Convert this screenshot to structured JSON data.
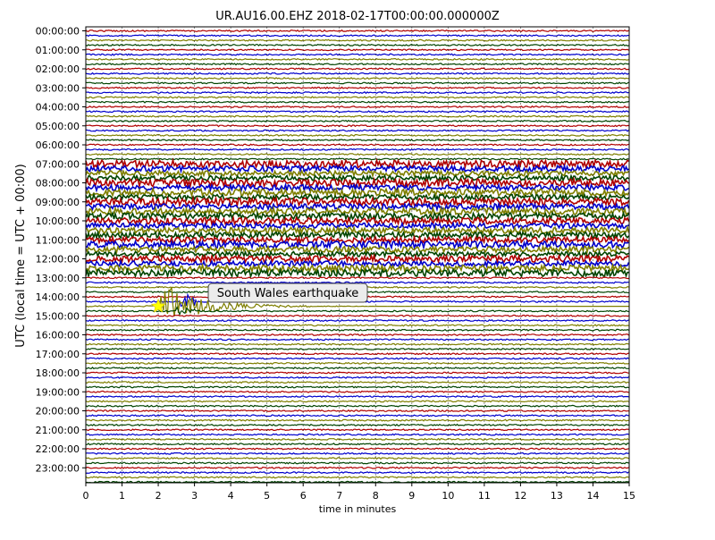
{
  "chart_data": {
    "type": "line",
    "title": "UR.AU16.00.EHZ  2018-02-17T00:00:00.000000Z",
    "xlabel": "time in minutes",
    "ylabel": "UTC (local time = UTC + 00:00)",
    "xlim": [
      0,
      15
    ],
    "x_ticks": [
      "0",
      "1",
      "2",
      "3",
      "4",
      "5",
      "6",
      "7",
      "8",
      "9",
      "10",
      "11",
      "12",
      "13",
      "14",
      "15"
    ],
    "y_tick_labels": [
      "00:00:00",
      "01:00:00",
      "02:00:00",
      "03:00:00",
      "04:00:00",
      "05:00:00",
      "06:00:00",
      "07:00:00",
      "08:00:00",
      "09:00:00",
      "10:00:00",
      "11:00:00",
      "12:00:00",
      "13:00:00",
      "14:00:00",
      "15:00:00",
      "16:00:00",
      "17:00:00",
      "18:00:00",
      "19:00:00",
      "20:00:00",
      "21:00:00",
      "22:00:00",
      "23:00:00"
    ],
    "traces_per_hour": 4,
    "trace_colors": [
      "#b00000",
      "#0000cc",
      "#7f7f00",
      "#004400"
    ],
    "grid": true,
    "noisy_hours": [
      7,
      8,
      9,
      10,
      11,
      12
    ],
    "event": {
      "label": "South Wales earthquake",
      "start_time_utc": "14:30:00",
      "marker_x_minutes": 2.0,
      "marker": "star",
      "marker_color": "#ffff00"
    }
  }
}
